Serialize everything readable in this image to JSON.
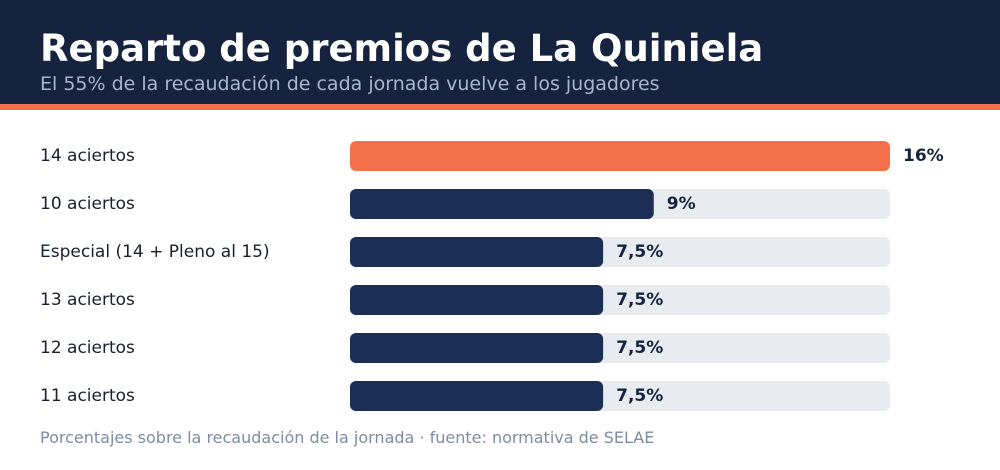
{
  "header": {
    "title": "Reparto de premios de La Quiniela",
    "subtitle": "El 55% de la recaudación de cada jornada vuelve a los jugadores"
  },
  "footer": {
    "note": "Porcentajes sobre la recaudación de la jornada · fuente: normativa de SELAE"
  },
  "colors": {
    "header_bg": "#15233f",
    "accent": "#f4704a",
    "bar": "#1b2e55",
    "track": "#e8ebf0",
    "label": "#1a1f2e"
  },
  "chart_data": {
    "type": "bar",
    "orientation": "horizontal",
    "categories": [
      "14 aciertos",
      "10 aciertos",
      "Especial (14 + Pleno al 15)",
      "13 aciertos",
      "12 aciertos",
      "11 aciertos"
    ],
    "values": [
      16,
      9,
      7.5,
      7.5,
      7.5,
      7.5
    ],
    "value_labels": [
      "16%",
      "9%",
      "7,5%",
      "7,5%",
      "7,5%",
      "7,5%"
    ],
    "xlim": [
      0,
      16
    ],
    "highlight_index": 0,
    "grid": false,
    "legend": "none"
  }
}
